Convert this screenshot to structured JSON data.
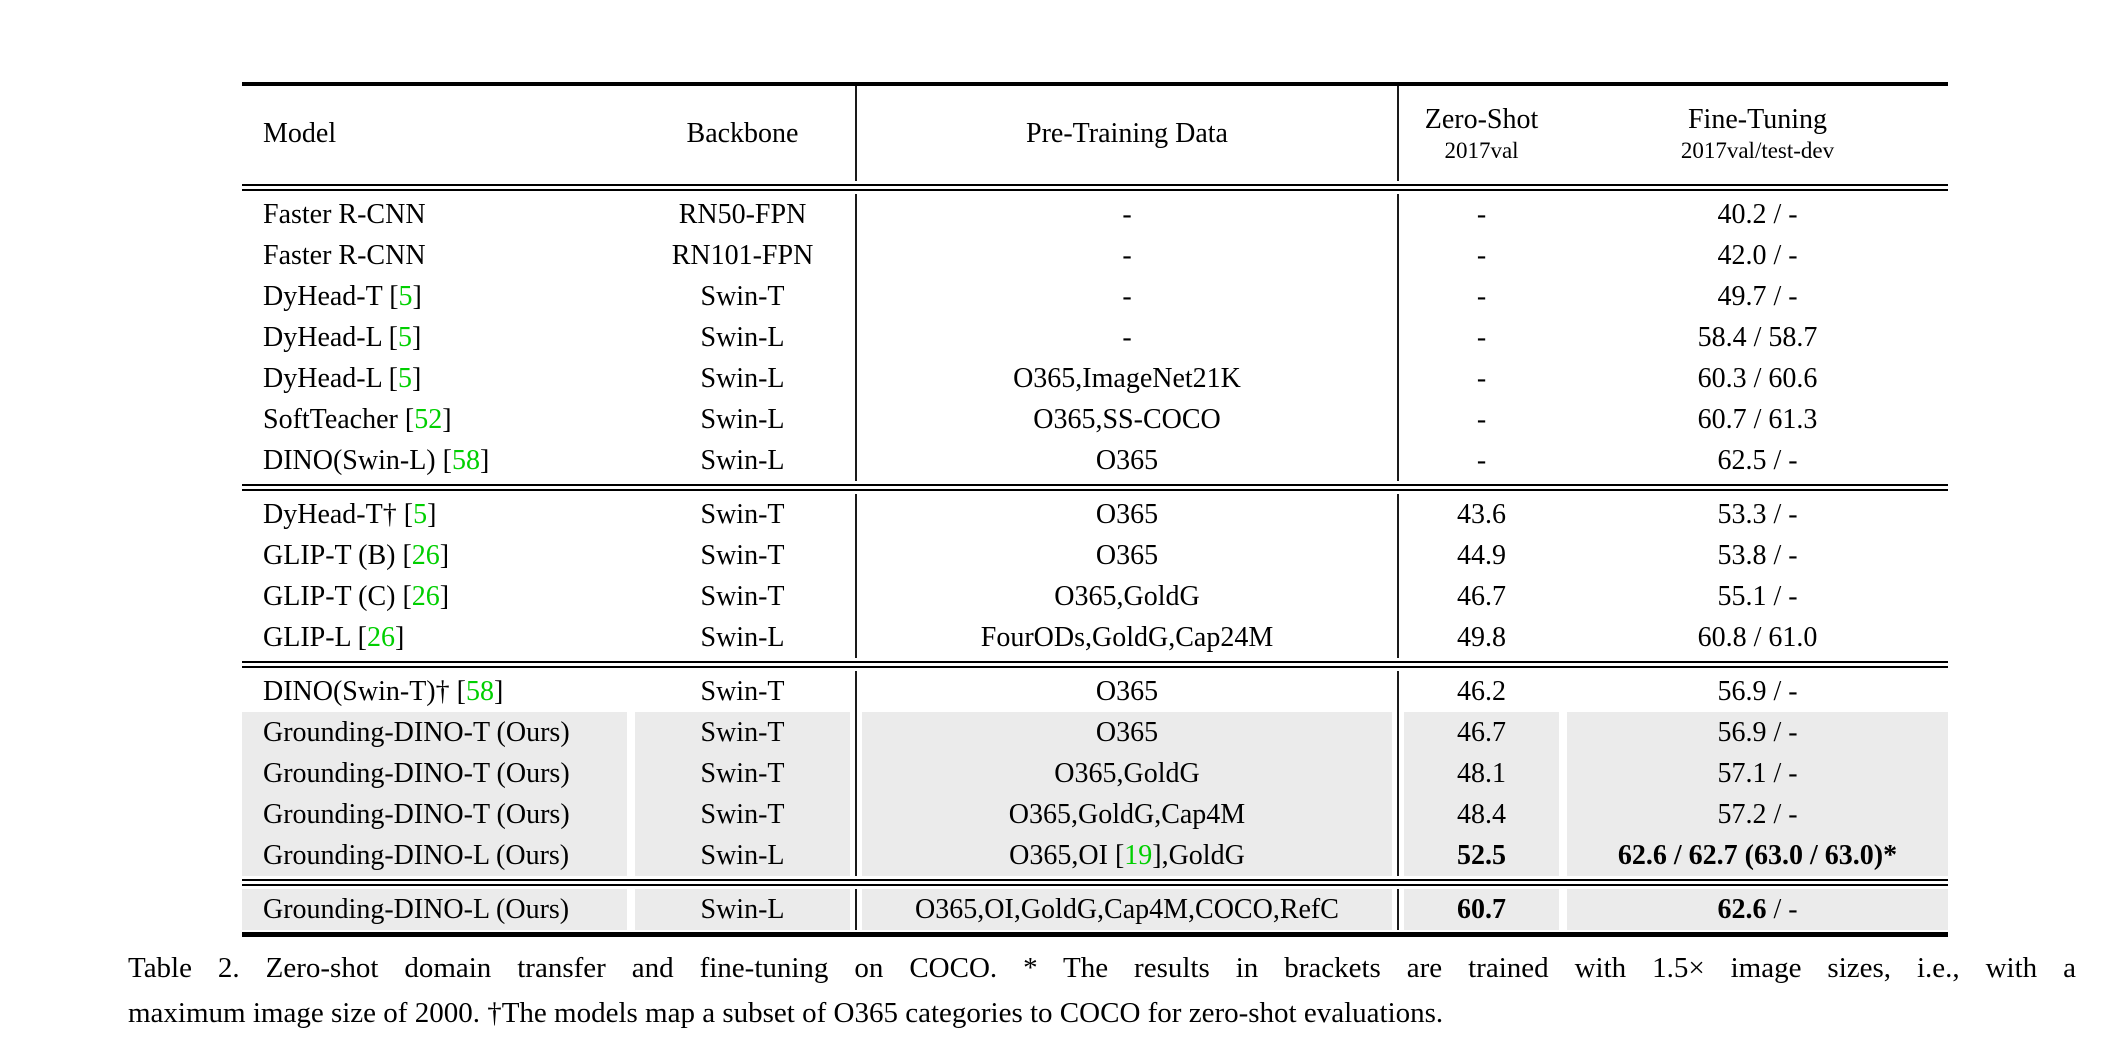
{
  "colors": {
    "citation_green": "#00cf00",
    "row_highlight": "#ebebeb"
  },
  "table": {
    "header": {
      "model": "Model",
      "backbone": "Backbone",
      "pretraining": "Pre-Training Data",
      "zero_shot_title": "Zero-Shot",
      "zero_shot_sub": "2017val",
      "fine_tuning_title": "Fine-Tuning",
      "fine_tuning_sub": "2017val/test-dev"
    },
    "groups": [
      {
        "rows": [
          {
            "model": "Faster R-CNN",
            "backbone": "RN50-FPN",
            "pretraining": "-",
            "zero_shot": "-",
            "fine_tuning": "40.2 / -",
            "highlight": false,
            "zs_bold": false,
            "ft_bold": false
          },
          {
            "model": "Faster R-CNN",
            "backbone": "RN101-FPN",
            "pretraining": "-",
            "zero_shot": "-",
            "fine_tuning": "42.0 / -",
            "highlight": false,
            "zs_bold": false,
            "ft_bold": false
          },
          {
            "model": "DyHead-T [5]",
            "backbone": "Swin-T",
            "pretraining": "-",
            "zero_shot": "-",
            "fine_tuning": "49.7 / -",
            "highlight": false,
            "zs_bold": false,
            "ft_bold": false
          },
          {
            "model": "DyHead-L [5]",
            "backbone": "Swin-L",
            "pretraining": "-",
            "zero_shot": "-",
            "fine_tuning": "58.4 / 58.7",
            "highlight": false,
            "zs_bold": false,
            "ft_bold": false
          },
          {
            "model": "DyHead-L [5]",
            "backbone": "Swin-L",
            "pretraining": "O365,ImageNet21K",
            "zero_shot": "-",
            "fine_tuning": "60.3 / 60.6",
            "highlight": false,
            "zs_bold": false,
            "ft_bold": false
          },
          {
            "model": "SoftTeacher [52]",
            "backbone": "Swin-L",
            "pretraining": "O365,SS-COCO",
            "zero_shot": "-",
            "fine_tuning": "60.7 / 61.3",
            "highlight": false,
            "zs_bold": false,
            "ft_bold": false
          },
          {
            "model": "DINO(Swin-L) [58]",
            "backbone": "Swin-L",
            "pretraining": "O365",
            "zero_shot": "-",
            "fine_tuning": "62.5 / -",
            "highlight": false,
            "zs_bold": false,
            "ft_bold": false
          }
        ]
      },
      {
        "rows": [
          {
            "model": "DyHead-T† [5]",
            "backbone": "Swin-T",
            "pretraining": "O365",
            "zero_shot": "43.6",
            "fine_tuning": "53.3 / -",
            "highlight": false,
            "zs_bold": false,
            "ft_bold": false
          },
          {
            "model": "GLIP-T (B) [26]",
            "backbone": "Swin-T",
            "pretraining": "O365",
            "zero_shot": "44.9",
            "fine_tuning": "53.8 / -",
            "highlight": false,
            "zs_bold": false,
            "ft_bold": false
          },
          {
            "model": "GLIP-T (C) [26]",
            "backbone": "Swin-T",
            "pretraining": "O365,GoldG",
            "zero_shot": "46.7",
            "fine_tuning": "55.1 / -",
            "highlight": false,
            "zs_bold": false,
            "ft_bold": false
          },
          {
            "model": "GLIP-L [26]",
            "backbone": "Swin-L",
            "pretraining": "FourODs,GoldG,Cap24M",
            "zero_shot": "49.8",
            "fine_tuning": "60.8 / 61.0",
            "highlight": false,
            "zs_bold": false,
            "ft_bold": false
          }
        ]
      },
      {
        "rows": [
          {
            "model": "DINO(Swin-T)† [58]",
            "backbone": "Swin-T",
            "pretraining": "O365",
            "zero_shot": "46.2",
            "fine_tuning": "56.9 / -",
            "highlight": false,
            "zs_bold": false,
            "ft_bold": false
          },
          {
            "model": "Grounding-DINO-T (Ours)",
            "backbone": "Swin-T",
            "pretraining": "O365",
            "zero_shot": "46.7",
            "fine_tuning": "56.9 / -",
            "highlight": true,
            "zs_bold": false,
            "ft_bold": false
          },
          {
            "model": "Grounding-DINO-T (Ours)",
            "backbone": "Swin-T",
            "pretraining": "O365,GoldG",
            "zero_shot": "48.1",
            "fine_tuning": "57.1 / -",
            "highlight": true,
            "zs_bold": false,
            "ft_bold": false
          },
          {
            "model": "Grounding-DINO-T (Ours)",
            "backbone": "Swin-T",
            "pretraining": "O365,GoldG,Cap4M",
            "zero_shot": "48.4",
            "fine_tuning": "57.2 / -",
            "highlight": true,
            "zs_bold": false,
            "ft_bold": false
          },
          {
            "model": "Grounding-DINO-L (Ours)",
            "backbone": "Swin-L",
            "pretraining": "O365,OI [19],GoldG",
            "zero_shot": "52.5",
            "fine_tuning": "62.6 / 62.7 (63.0 / 63.0)*",
            "highlight": true,
            "zs_bold": true,
            "ft_bold": true
          }
        ]
      },
      {
        "rows": [
          {
            "model": "Grounding-DINO-L (Ours)",
            "backbone": "Swin-L",
            "pretraining": "O365,OI,GoldG,Cap4M,COCO,RefC",
            "zero_shot": "60.7",
            "fine_tuning": "**62.6** / -",
            "highlight": true,
            "zs_bold": true,
            "ft_bold": false
          }
        ]
      }
    ]
  },
  "caption": {
    "line1": "Table 2.  Zero-shot domain transfer and fine-tuning on COCO. * The results in brackets are trained with 1.5× image sizes, i.e., with a",
    "line2": "maximum image size of 2000. †The models map a subset of O365 categories to COCO for zero-shot evaluations."
  }
}
